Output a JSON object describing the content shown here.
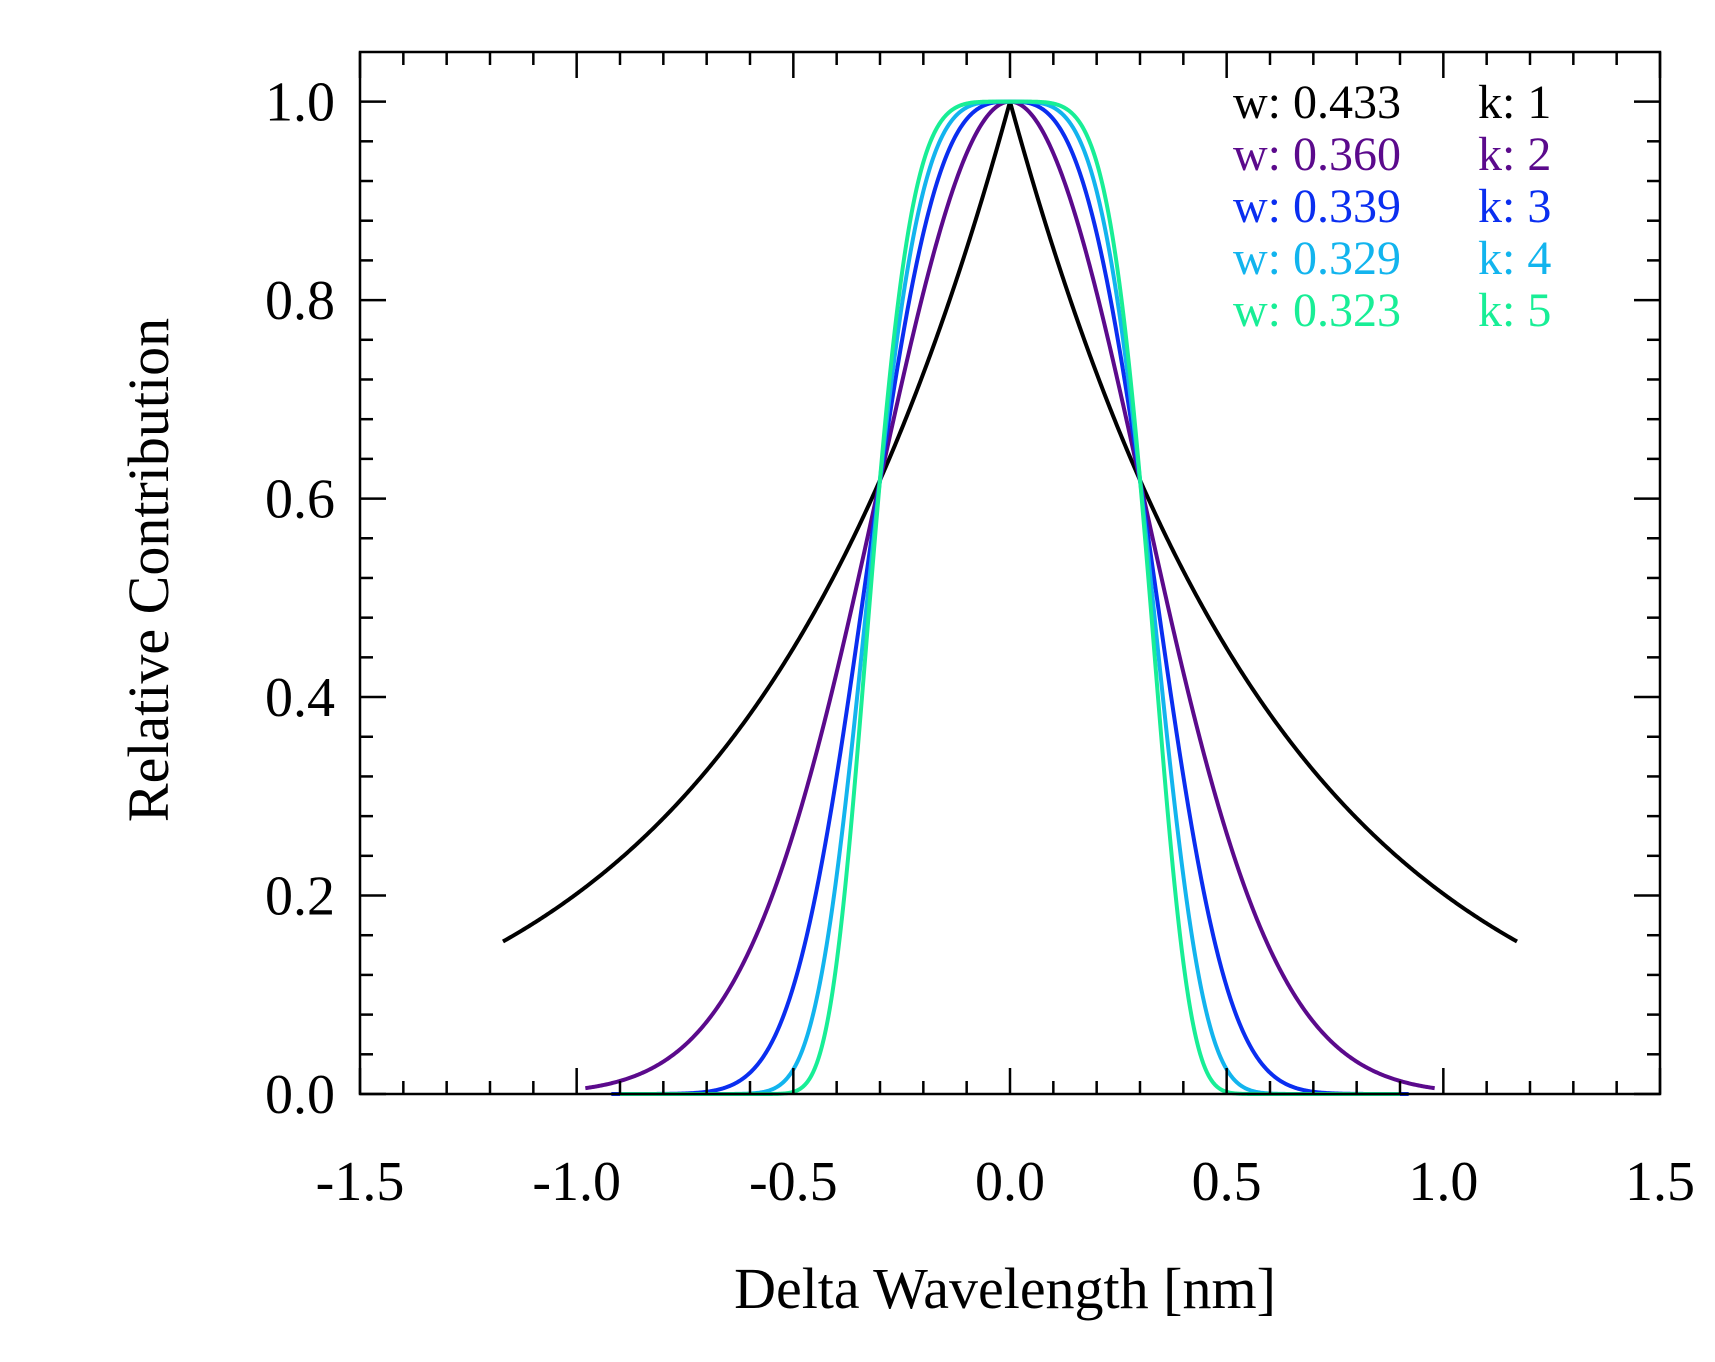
{
  "chart_data": {
    "type": "line",
    "title": "",
    "xlabel": "Delta Wavelength [nm]",
    "ylabel": "Relative Contribution",
    "xlim": [
      -1.5,
      1.5
    ],
    "ylim": [
      0.0,
      1.05
    ],
    "xticks": [
      -1.5,
      -1.0,
      -0.5,
      0.0,
      0.5,
      1.0,
      1.5
    ],
    "xtick_labels": [
      "-1.5",
      "-1.0",
      "-0.5",
      "0.0",
      "0.5",
      "1.0",
      "1.5"
    ],
    "yticks": [
      0.0,
      0.2,
      0.4,
      0.6,
      0.8,
      1.0
    ],
    "ytick_labels": [
      "0.0",
      "0.2",
      "0.4",
      "0.6",
      "0.8",
      "1.0"
    ],
    "legend_position": "top-right",
    "series": [
      {
        "name": "k1",
        "w_label": "w: 0.433",
        "k_label": "k: 1",
        "w": 0.433,
        "k": 1,
        "x_range": [
          -1.17,
          1.17
        ],
        "color": "#000000"
      },
      {
        "name": "k2",
        "w_label": "w: 0.360",
        "k_label": "k: 2",
        "w": 0.36,
        "k": 2,
        "x_range": [
          -0.98,
          0.98
        ],
        "color": "#5b0a8c"
      },
      {
        "name": "k3",
        "w_label": "w: 0.339",
        "k_label": "k: 3",
        "w": 0.339,
        "k": 3,
        "x_range": [
          -0.92,
          0.92
        ],
        "color": "#0a2ef0"
      },
      {
        "name": "k4",
        "w_label": "w: 0.329",
        "k_label": "k: 4",
        "w": 0.329,
        "k": 4,
        "x_range": [
          -0.9,
          0.9
        ],
        "color": "#12b4ee"
      },
      {
        "name": "k5",
        "w_label": "w: 0.323",
        "k_label": "k: 5",
        "w": 0.323,
        "k": 5,
        "x_range": [
          -0.9,
          0.9
        ],
        "color": "#18ee96"
      }
    ]
  }
}
